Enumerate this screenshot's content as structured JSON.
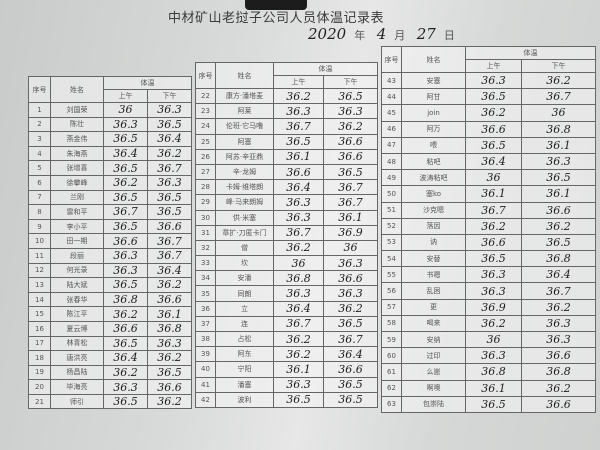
{
  "document": {
    "title": "中材矿山老挝子公司人员体温记录表",
    "date": {
      "year": "2020",
      "year_label": "年",
      "month": "4",
      "month_label": "月",
      "day": "27",
      "day_label": "日"
    },
    "headers": {
      "seq": "序号",
      "name": "姓名",
      "temp": "体温",
      "am": "上午",
      "pm": "下午"
    },
    "tables": [
      {
        "rows": [
          [
            "1",
            "刘国荣",
            "36",
            "36.3"
          ],
          [
            "2",
            "陈壮",
            "36.3",
            "36.5"
          ],
          [
            "3",
            "燕金伟",
            "36.5",
            "36.4"
          ],
          [
            "4",
            "朱海燕",
            "36.4",
            "36.2"
          ],
          [
            "5",
            "张增喜",
            "36.5",
            "36.7"
          ],
          [
            "6",
            "徐攀峰",
            "36.2",
            "36.3"
          ],
          [
            "7",
            "兰刚",
            "36.5",
            "36.5"
          ],
          [
            "8",
            "雷和平",
            "36.7",
            "36.5"
          ],
          [
            "9",
            "李小平",
            "36.5",
            "36.6"
          ],
          [
            "10",
            "田一期",
            "36.6",
            "36.7"
          ],
          [
            "11",
            "段丽",
            "36.3",
            "36.7"
          ],
          [
            "12",
            "何光录",
            "36.3",
            "36.4"
          ],
          [
            "13",
            "陆大斌",
            "36.5",
            "36.2"
          ],
          [
            "14",
            "张春华",
            "36.8",
            "36.6"
          ],
          [
            "15",
            "陈江平",
            "36.2",
            "36.1"
          ],
          [
            "16",
            "夏云博",
            "36.6",
            "36.8"
          ],
          [
            "17",
            "林青松",
            "36.5",
            "36.3"
          ],
          [
            "18",
            "唐洪亮",
            "36.4",
            "36.2"
          ],
          [
            "19",
            "杨昌陆",
            "36.2",
            "36.5"
          ],
          [
            "20",
            "毕海亮",
            "36.3",
            "36.6"
          ],
          [
            "21",
            "师引",
            "36.5",
            "36.2"
          ]
        ]
      },
      {
        "rows": [
          [
            "22",
            "康方·潘塔麦",
            "36.2",
            "36.5"
          ],
          [
            "23",
            "阿莱",
            "36.3",
            "36.3"
          ],
          [
            "24",
            "伦班·它马噜",
            "36.7",
            "36.2"
          ],
          [
            "25",
            "阿塞",
            "36.5",
            "36.6"
          ],
          [
            "26",
            "阿苏·辛亚鼎",
            "36.1",
            "36.6"
          ],
          [
            "27",
            "辛·龙姆",
            "36.6",
            "36.5"
          ],
          [
            "28",
            "卡姆·维塔朗",
            "36.4",
            "36.7"
          ],
          [
            "29",
            "峰·马来朗姆",
            "36.3",
            "36.7"
          ],
          [
            "30",
            "供·米塞",
            "36.3",
            "36.1"
          ],
          [
            "31",
            "章扩·刀匿卡门",
            "36.7",
            "36.9"
          ],
          [
            "32",
            "僧",
            "36.2",
            "36"
          ],
          [
            "33",
            "坎",
            "36",
            "36.3"
          ],
          [
            "34",
            "安潘",
            "36.8",
            "36.6"
          ],
          [
            "35",
            "同朗",
            "36.3",
            "36.3"
          ],
          [
            "36",
            "立",
            "36.4",
            "36.2"
          ],
          [
            "37",
            "连",
            "36.7",
            "36.5"
          ],
          [
            "38",
            "占松",
            "36.2",
            "36.7"
          ],
          [
            "39",
            "阿东",
            "36.2",
            "36.4"
          ],
          [
            "40",
            "宁阳",
            "36.1",
            "36.6"
          ],
          [
            "41",
            "潘塞",
            "36.3",
            "36.5"
          ],
          [
            "42",
            "波利",
            "36.5",
            "36.5"
          ]
        ]
      },
      {
        "rows": [
          [
            "43",
            "安塞",
            "36.3",
            "36.2"
          ],
          [
            "44",
            "阿甘",
            "36.5",
            "36.7"
          ],
          [
            "45",
            "join",
            "36.2",
            "36"
          ],
          [
            "46",
            "阿万",
            "36.6",
            "36.8"
          ],
          [
            "47",
            "喂",
            "36.5",
            "36.1"
          ],
          [
            "48",
            "粘吧",
            "36.4",
            "36.3"
          ],
          [
            "49",
            "波涛粘吧",
            "36",
            "36.5"
          ],
          [
            "50",
            "塞ko",
            "36.1",
            "36.1"
          ],
          [
            "51",
            "沙克嗯",
            "36.7",
            "36.6"
          ],
          [
            "52",
            "落因",
            "36.2",
            "36.2"
          ],
          [
            "53",
            "讷",
            "36.6",
            "36.5"
          ],
          [
            "54",
            "安替",
            "36.5",
            "36.8"
          ],
          [
            "55",
            "书嗯",
            "36.3",
            "36.4"
          ],
          [
            "56",
            "乱困",
            "36.3",
            "36.7"
          ],
          [
            "57",
            "更",
            "36.9",
            "36.2"
          ],
          [
            "58",
            "喝来",
            "36.2",
            "36.3"
          ],
          [
            "59",
            "安纳",
            "36",
            "36.3"
          ],
          [
            "60",
            "过印",
            "36.3",
            "36.6"
          ],
          [
            "61",
            "么崽",
            "36.8",
            "36.8"
          ],
          [
            "62",
            "啊噢",
            "36.1",
            "36.2"
          ],
          [
            "63",
            "包崇陆",
            "36.5",
            "36.6"
          ]
        ]
      }
    ]
  }
}
